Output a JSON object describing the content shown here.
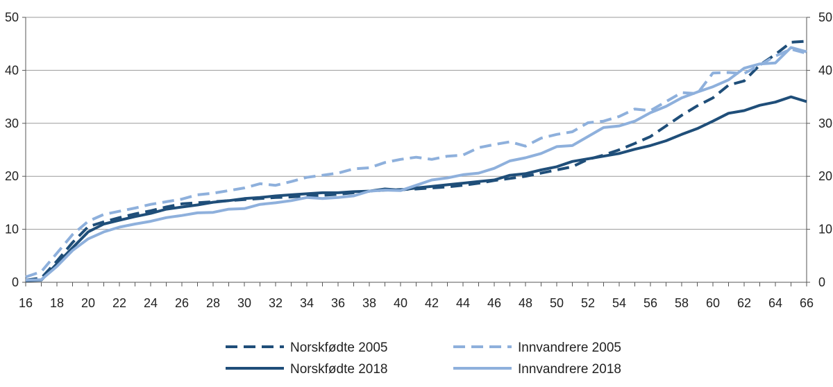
{
  "colors": {
    "dark": "#1f4e79",
    "light": "#8eb0dc",
    "grid": "#9a9a9a",
    "axis": "#555555"
  },
  "chart_data": {
    "type": "line",
    "title": "",
    "xlabel": "",
    "ylabel": "",
    "xlim": [
      16,
      66
    ],
    "ylim": [
      0,
      50
    ],
    "x_ticks": [
      16,
      18,
      20,
      22,
      24,
      26,
      28,
      30,
      32,
      34,
      36,
      38,
      40,
      42,
      44,
      46,
      48,
      50,
      52,
      54,
      56,
      58,
      60,
      62,
      64,
      66
    ],
    "y_ticks": [
      0,
      10,
      20,
      30,
      40,
      50
    ],
    "grid": "horizontal",
    "legend_position": "bottom",
    "x": [
      16,
      17,
      18,
      19,
      20,
      21,
      22,
      23,
      24,
      25,
      26,
      27,
      28,
      29,
      30,
      31,
      32,
      33,
      34,
      35,
      36,
      37,
      38,
      39,
      40,
      41,
      42,
      43,
      44,
      45,
      46,
      47,
      48,
      49,
      50,
      51,
      52,
      53,
      54,
      55,
      56,
      57,
      58,
      59,
      60,
      61,
      62,
      63,
      64,
      65,
      66
    ],
    "series": [
      {
        "name": "Norskfødte 2005",
        "color": "dark",
        "dashed": true,
        "values": [
          0.4,
          0.8,
          4.0,
          7.5,
          10.5,
          11.4,
          12.2,
          12.9,
          13.5,
          14.2,
          14.8,
          15.0,
          15.2,
          15.4,
          15.6,
          15.8,
          16.0,
          16.1,
          16.3,
          16.4,
          16.6,
          16.9,
          17.2,
          17.4,
          17.5,
          17.6,
          17.8,
          18.0,
          18.3,
          18.7,
          19.2,
          19.6,
          20.0,
          20.6,
          21.2,
          21.8,
          23.2,
          24.0,
          25.0,
          26.2,
          27.5,
          29.5,
          31.5,
          33.3,
          34.8,
          37.2,
          38.0,
          41.0,
          43.0,
          45.3,
          45.5
        ]
      },
      {
        "name": "Norskfødte 2018",
        "color": "dark",
        "dashed": false,
        "values": [
          0.3,
          0.4,
          3.5,
          6.5,
          9.5,
          11.0,
          11.7,
          12.4,
          13.0,
          13.8,
          14.2,
          14.6,
          15.1,
          15.4,
          15.8,
          16.0,
          16.3,
          16.5,
          16.7,
          16.9,
          16.9,
          17.1,
          17.2,
          17.6,
          17.4,
          17.8,
          18.1,
          18.4,
          18.7,
          19.0,
          19.3,
          20.2,
          20.5,
          21.2,
          21.8,
          22.8,
          23.3,
          23.8,
          24.3,
          25.1,
          25.8,
          26.7,
          27.9,
          29.0,
          30.4,
          31.9,
          32.4,
          33.4,
          34.0,
          35.0,
          34.1
        ]
      },
      {
        "name": "Innvandrere 2005",
        "color": "light",
        "dashed": true,
        "values": [
          1.0,
          2.0,
          5.5,
          9.0,
          11.5,
          12.8,
          13.4,
          14.0,
          14.7,
          15.2,
          15.7,
          16.5,
          16.8,
          17.3,
          17.8,
          18.6,
          18.3,
          19.0,
          19.8,
          20.2,
          20.6,
          21.4,
          21.6,
          22.6,
          23.2,
          23.6,
          23.2,
          23.8,
          24.0,
          25.4,
          26.0,
          26.5,
          25.7,
          27.2,
          27.9,
          28.4,
          30.1,
          30.4,
          31.3,
          32.7,
          32.4,
          34.1,
          35.8,
          35.6,
          39.5,
          39.6,
          39.4,
          41.0,
          42.7,
          44.0,
          43.2
        ]
      },
      {
        "name": "Innvandrere 2018",
        "color": "light",
        "dashed": false,
        "values": [
          0.4,
          0.5,
          3.0,
          6.0,
          8.2,
          9.5,
          10.4,
          11.0,
          11.5,
          12.2,
          12.6,
          13.1,
          13.2,
          13.8,
          13.9,
          14.7,
          15.0,
          15.4,
          16.0,
          15.8,
          16.0,
          16.3,
          17.2,
          17.4,
          17.3,
          18.3,
          19.3,
          19.7,
          20.3,
          20.6,
          21.5,
          22.9,
          23.5,
          24.3,
          25.6,
          25.8,
          27.5,
          29.2,
          29.5,
          30.4,
          32.0,
          33.2,
          34.8,
          35.9,
          36.9,
          38.2,
          40.4,
          41.2,
          41.4,
          44.3,
          43.5
        ]
      }
    ]
  }
}
